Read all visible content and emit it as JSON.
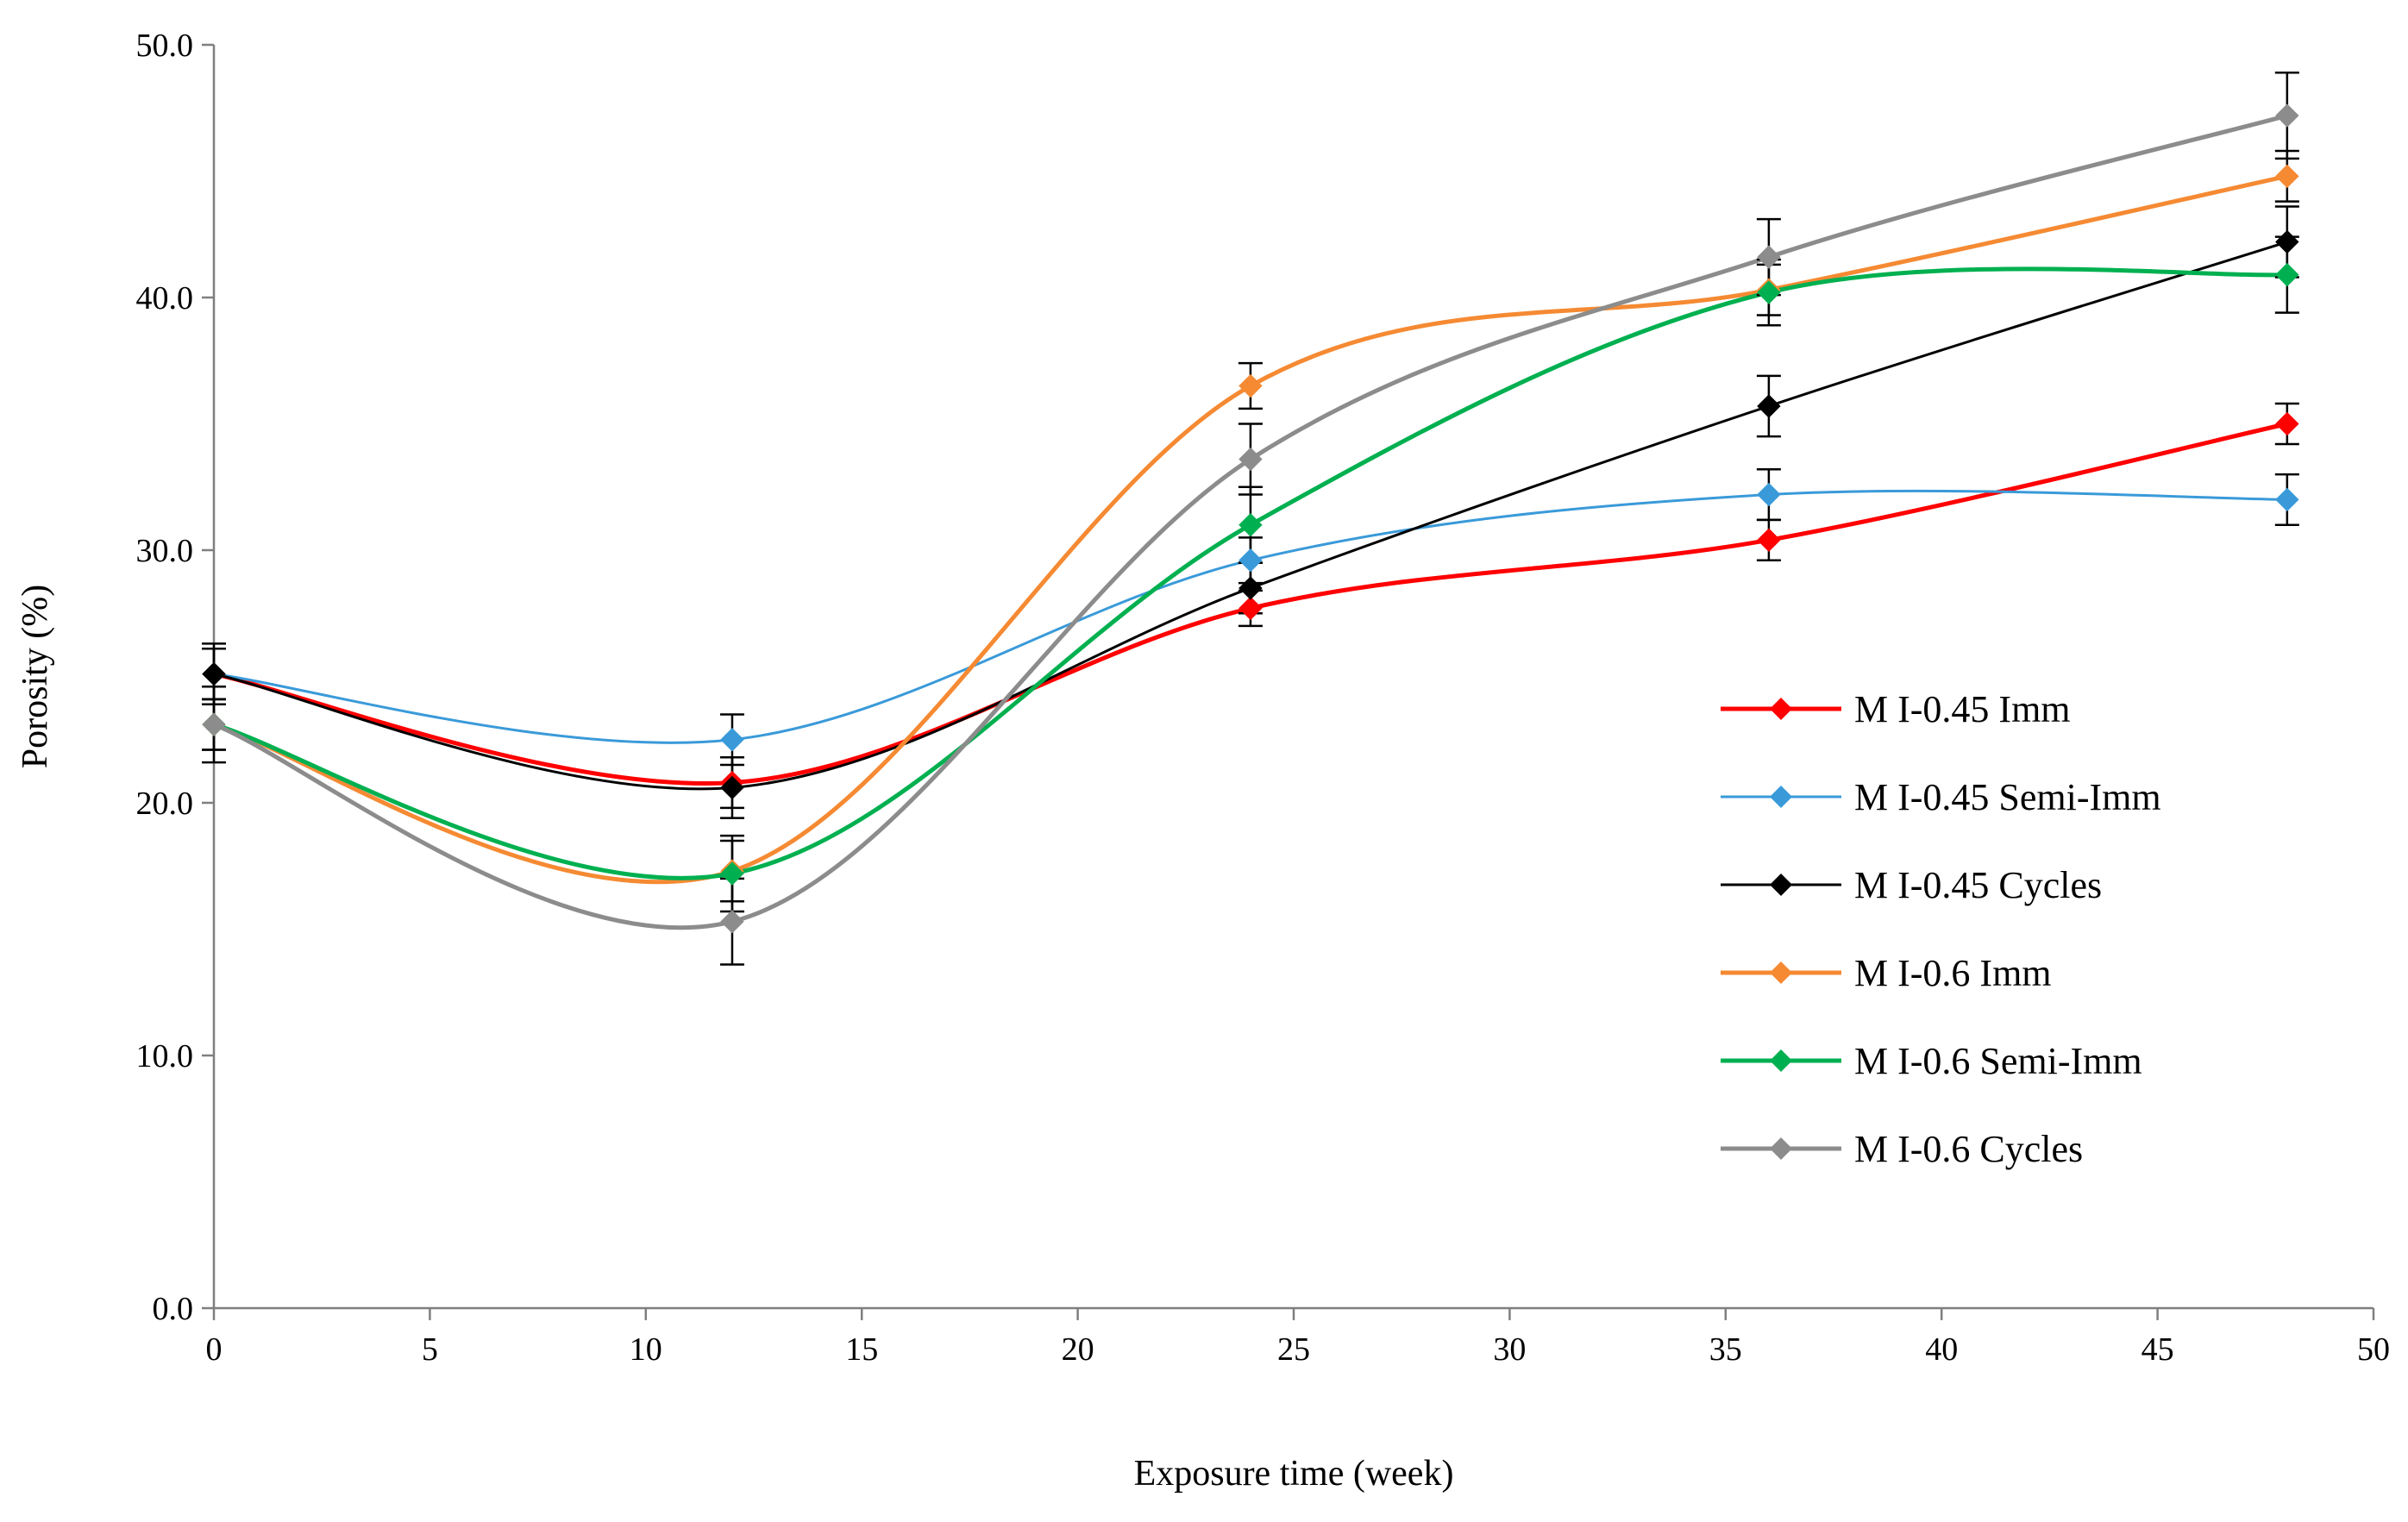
{
  "chart_data": {
    "type": "line",
    "title": "",
    "xlabel": "Exposure time (week)",
    "ylabel": "Porosity (%)",
    "xlim": [
      0,
      50
    ],
    "ylim": [
      0,
      50
    ],
    "x_ticks": [
      0,
      5,
      10,
      15,
      20,
      25,
      30,
      35,
      40,
      45,
      50
    ],
    "x_tick_labels": [
      "0",
      "5",
      "10",
      "15",
      "20",
      "25",
      "30",
      "35",
      "40",
      "45",
      "50"
    ],
    "y_ticks": [
      0,
      10,
      20,
      30,
      40,
      50
    ],
    "y_tick_labels": [
      "0.0",
      "10.0",
      "20.0",
      "30.0",
      "40.0",
      "50.0"
    ],
    "grid": false,
    "legend_position": "right-center",
    "smooth": true,
    "x": [
      0,
      12,
      24,
      36,
      48
    ],
    "series": [
      {
        "name": "M I-0.45 Imm",
        "color": "#ff0000",
        "line_width": 5,
        "values": [
          25.1,
          20.8,
          27.7,
          30.4,
          35.0
        ],
        "error": [
          1.0,
          1.0,
          0.7,
          0.8,
          0.8
        ]
      },
      {
        "name": "M I-0.45 Semi-Imm",
        "color": "#3a9ad9",
        "line_width": 3,
        "values": [
          25.1,
          22.5,
          29.6,
          32.2,
          32.0
        ],
        "error": [
          1.0,
          1.0,
          0.9,
          1.0,
          1.0
        ]
      },
      {
        "name": "M I-0.45 Cycles",
        "color": "#000000",
        "line_width": 3,
        "values": [
          25.1,
          20.6,
          28.5,
          35.7,
          42.2
        ],
        "error": [
          1.2,
          1.2,
          1.0,
          1.2,
          1.4
        ]
      },
      {
        "name": "M I-0.6 Imm",
        "color": "#f58a33",
        "line_width": 5,
        "values": [
          23.1,
          17.3,
          36.5,
          40.3,
          44.8
        ],
        "error": [
          1.0,
          1.2,
          0.9,
          1.0,
          1.0
        ]
      },
      {
        "name": "M I-0.6 Semi-Imm",
        "color": "#00b050",
        "line_width": 5,
        "values": [
          23.1,
          17.2,
          31.0,
          40.2,
          40.9
        ],
        "error": [
          1.0,
          1.5,
          1.5,
          1.3,
          1.5
        ]
      },
      {
        "name": "M I-0.6 Cycles",
        "color": "#8c8c8c",
        "line_width": 5,
        "values": [
          23.1,
          15.3,
          33.6,
          41.6,
          47.2
        ],
        "error": [
          1.5,
          1.7,
          1.4,
          1.5,
          1.7
        ]
      }
    ]
  }
}
